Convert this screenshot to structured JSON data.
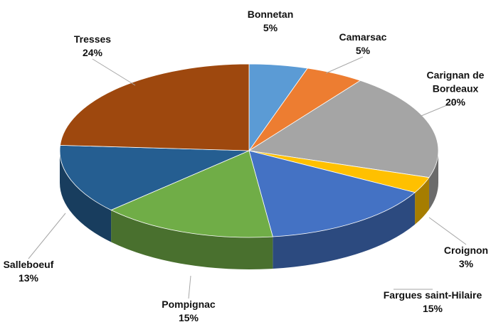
{
  "chart_data": {
    "type": "pie3d",
    "categories": [
      "Bonnetan",
      "Camarsac",
      "Carignan de Bordeaux",
      "Croignon",
      "Fargues saint-Hilaire",
      "Pompignac",
      "Salleboeuf",
      "Tresses"
    ],
    "values": [
      5,
      5,
      20,
      3,
      15,
      15,
      13,
      24
    ],
    "value_labels": [
      "5%",
      "5%",
      "20%",
      "3%",
      "15%",
      "15%",
      "13%",
      "24%"
    ],
    "colors": [
      "#5b9bd5",
      "#ed7d31",
      "#a5a5a5",
      "#ffc000",
      "#4472c4",
      "#70ad47",
      "#255e91",
      "#9e480e"
    ]
  }
}
